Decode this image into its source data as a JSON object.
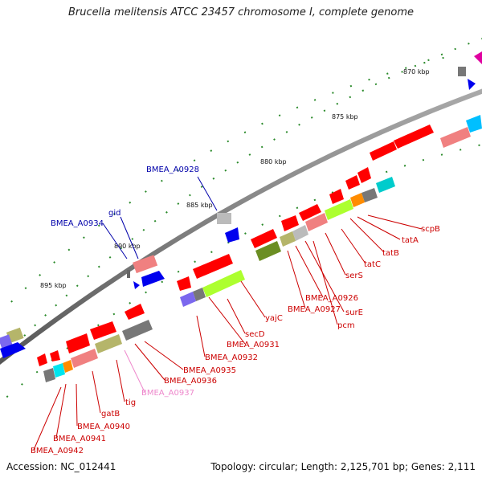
{
  "title": "Brucella melitensis ATCC 23457 chromosome I, complete genome",
  "footer": {
    "accession": "Accession: NC_012441",
    "summary": "Topology: circular; Length: 2,125,701 bp; Genes: 2,111"
  },
  "ticks": [
    "870 kbp",
    "875 kbp",
    "880 kbp",
    "885 kbp",
    "890 kbp",
    "895 kbp"
  ],
  "labels": {
    "blue": [
      "BMEA_A0928",
      "gid",
      "BMEA_A0934"
    ],
    "red": [
      "scpB",
      "tatA",
      "tatB",
      "tatC",
      "serS",
      "surE",
      "BMEA_A0926",
      "BMEA_A0927",
      "pcm",
      "yajC",
      "BMEA_A0931",
      "secD",
      "BMEA_A0932",
      "BMEA_A0935",
      "BMEA_A0936",
      "tig",
      "gatB",
      "BMEA_A0940",
      "BMEA_A0941",
      "BMEA_A0942"
    ],
    "pink": [
      "BMEA_A0937"
    ]
  },
  "colors": {
    "red": "#ff0000",
    "salmon": "#f08080",
    "gray": "#777777",
    "lightgray": "#bbbbbb",
    "olive": "#b5b56a",
    "darkolive": "#6b8e23",
    "lime": "#adff2f",
    "blue": "#0000ee",
    "cyan": "#00dddd",
    "orange": "#ff8c00",
    "purple": "#7b68ee",
    "magenta": "#e000a0",
    "label_blue": "#0000aa",
    "label_red": "#cc0000",
    "label_pink": "#ee88cc"
  }
}
